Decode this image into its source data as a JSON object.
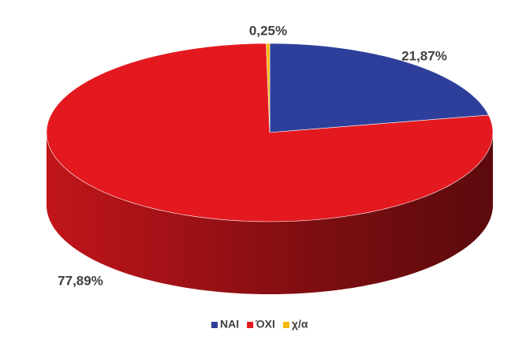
{
  "chart_data": {
    "type": "pie",
    "categories": [
      "NAI",
      "ΌΧΙ",
      "χ/α"
    ],
    "values": [
      21.87,
      77.89,
      0.25
    ],
    "value_labels": [
      "21,87%",
      "77,89%",
      "0,25%"
    ],
    "colors": [
      "#2e3f9b",
      "#e3191f",
      "#f5b800"
    ],
    "legend": "bottom"
  }
}
